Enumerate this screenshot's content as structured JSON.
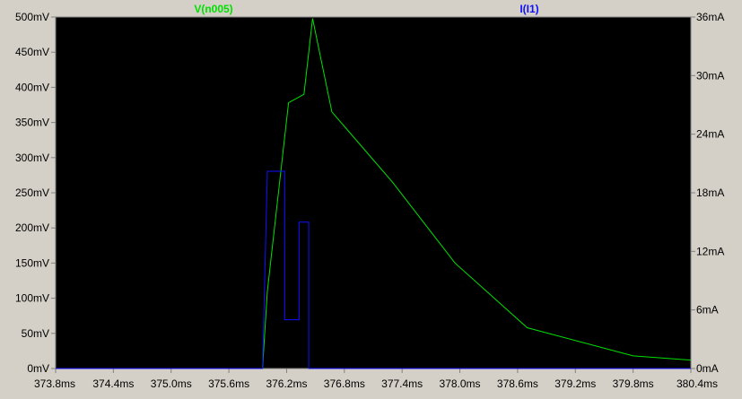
{
  "chart_data": {
    "type": "line",
    "x_unit": "ms",
    "xlim": [
      373.8,
      380.4
    ],
    "x_ticks": [
      "373.8ms",
      "374.4ms",
      "375.0ms",
      "375.6ms",
      "376.2ms",
      "376.8ms",
      "377.4ms",
      "378.0ms",
      "378.6ms",
      "379.2ms",
      "379.8ms",
      "380.4ms"
    ],
    "x_tick_values": [
      373.8,
      374.4,
      375.0,
      375.6,
      376.2,
      376.8,
      377.4,
      378.0,
      378.6,
      379.2,
      379.8,
      380.4
    ],
    "y_left": {
      "unit": "mV",
      "ylim": [
        0,
        500
      ],
      "ticks": [
        "0mV",
        "50mV",
        "100mV",
        "150mV",
        "200mV",
        "250mV",
        "300mV",
        "350mV",
        "400mV",
        "450mV",
        "500mV"
      ],
      "tick_values": [
        0,
        50,
        100,
        150,
        200,
        250,
        300,
        350,
        400,
        450,
        500
      ]
    },
    "y_right": {
      "unit": "mA",
      "ylim": [
        0,
        36
      ],
      "ticks": [
        "0mA",
        "6mA",
        "12mA",
        "18mA",
        "24mA",
        "30mA",
        "36mA"
      ],
      "tick_values": [
        0,
        6,
        12,
        18,
        24,
        30,
        36
      ]
    },
    "grid": false,
    "series": [
      {
        "name": "V(n005)",
        "axis": "left",
        "color": "#00e000",
        "x": [
          373.8,
          375.95,
          376.0,
          376.22,
          376.38,
          376.47,
          376.67,
          377.3,
          377.95,
          378.7,
          379.8,
          380.4
        ],
        "y": [
          0,
          0,
          110,
          378,
          390,
          498,
          365,
          265,
          150,
          58,
          18,
          12
        ]
      },
      {
        "name": "I(I1)",
        "axis": "right",
        "color": "#1010ff",
        "x": [
          373.8,
          375.95,
          376.0,
          376.0,
          376.18,
          376.18,
          376.33,
          376.33,
          376.43,
          376.43,
          380.4
        ],
        "y": [
          0,
          0,
          20.2,
          20.2,
          20.2,
          5.0,
          5.0,
          15.0,
          15.0,
          0,
          0
        ]
      }
    ]
  },
  "colors": {
    "plot_background": "#000000",
    "axis_line": "#808080",
    "tick_mark": "#808080"
  }
}
